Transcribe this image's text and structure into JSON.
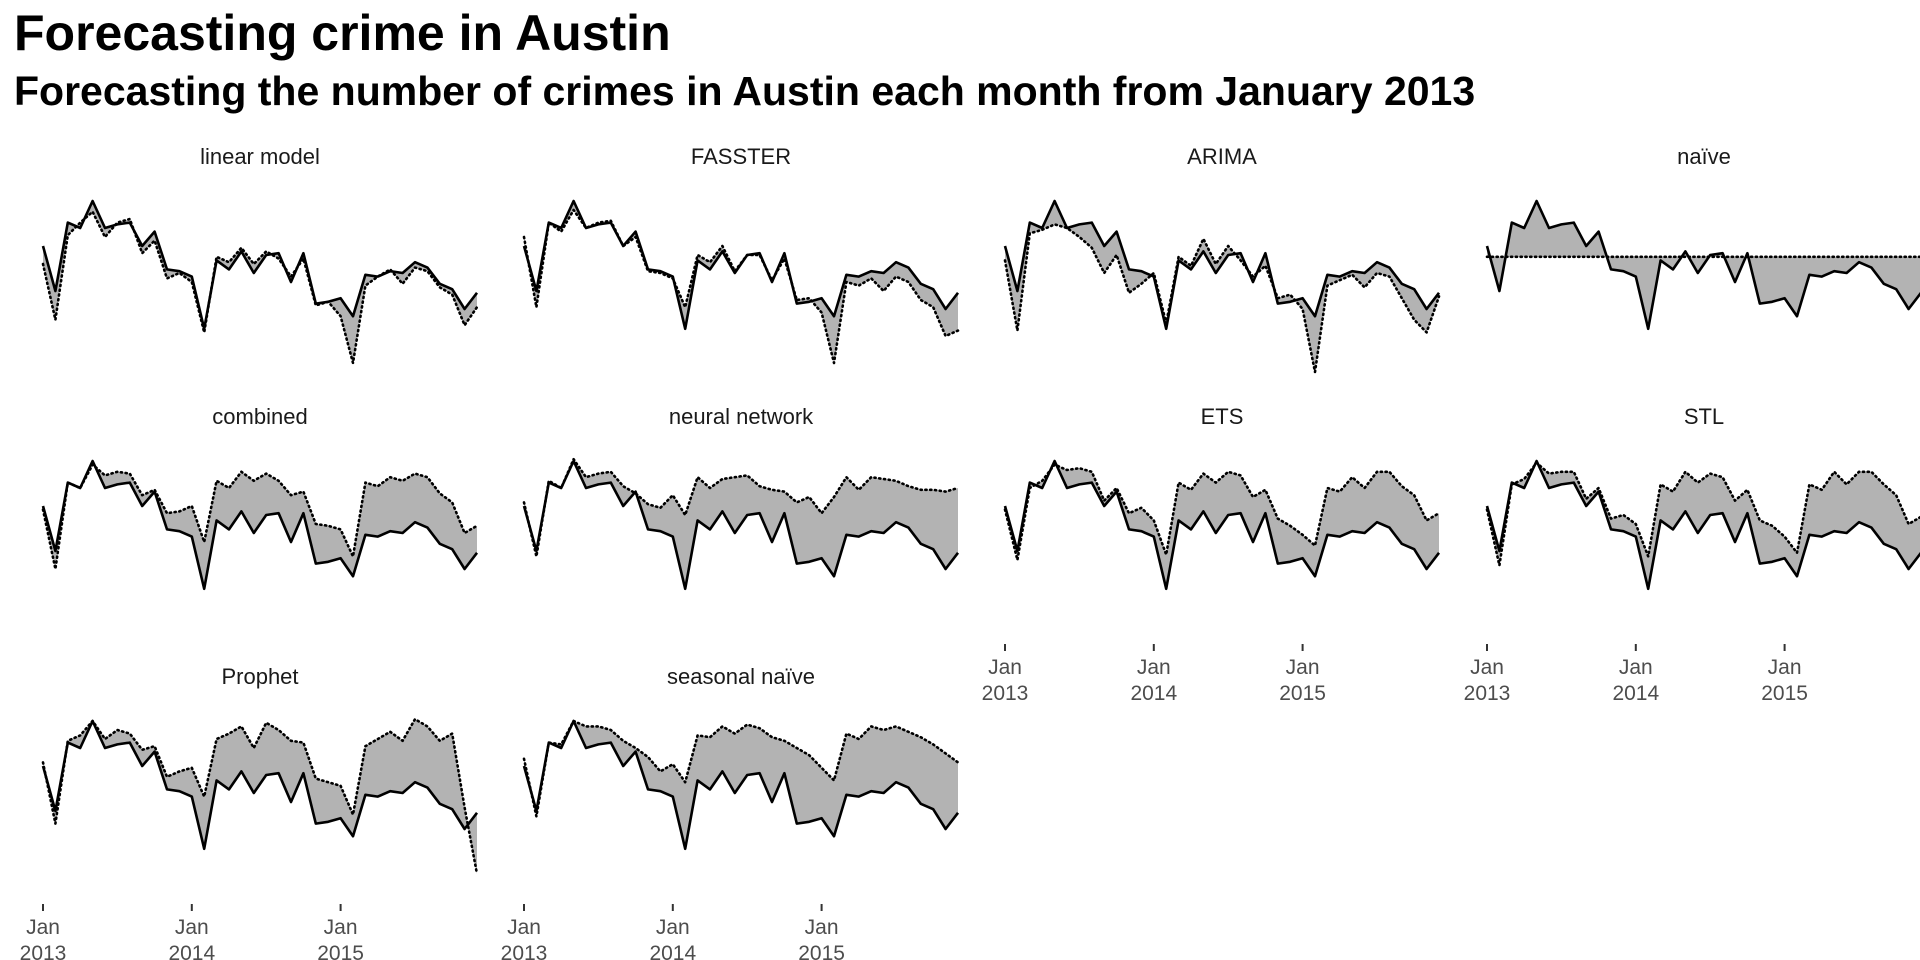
{
  "title": "Forecasting crime in Austin",
  "subtitle": "Forecasting the number of crimes in Austin each month from January 2013",
  "chart_data": {
    "type": "line",
    "layout": "facet-wrap, 4 columns, 3 rows",
    "x_start": "2013-01",
    "x_ticks": [
      {
        "month": "2013-01",
        "label": [
          "Jan",
          "2013"
        ]
      },
      {
        "month": "2014-01",
        "label": [
          "Jan",
          "2014"
        ]
      },
      {
        "month": "2015-01",
        "label": [
          "Jan",
          "2015"
        ]
      }
    ],
    "y_axis_visible": false,
    "grid": false,
    "legend": "none",
    "fill_color": "#b3b3b3",
    "actual_style": "solid black",
    "forecast_style": "dotted black",
    "actual": [
      0.7,
      0.45,
      0.83,
      0.8,
      0.95,
      0.8,
      0.82,
      0.83,
      0.7,
      0.78,
      0.57,
      0.56,
      0.53,
      0.24,
      0.62,
      0.57,
      0.67,
      0.55,
      0.65,
      0.66,
      0.5,
      0.66,
      0.38,
      0.39,
      0.41,
      0.31,
      0.54,
      0.53,
      0.56,
      0.55,
      0.61,
      0.58,
      0.49,
      0.46,
      0.35,
      0.44
    ],
    "panels": [
      {
        "name": "linear model",
        "forecast": [
          0.6,
          0.29,
          0.76,
          0.83,
          0.89,
          0.75,
          0.83,
          0.85,
          0.66,
          0.73,
          0.52,
          0.55,
          0.5,
          0.22,
          0.64,
          0.61,
          0.69,
          0.6,
          0.67,
          0.63,
          0.53,
          0.63,
          0.37,
          0.39,
          0.31,
          0.05,
          0.48,
          0.53,
          0.57,
          0.49,
          0.58,
          0.56,
          0.47,
          0.43,
          0.26,
          0.36
        ]
      },
      {
        "name": "FASSTER",
        "forecast": [
          0.75,
          0.36,
          0.83,
          0.78,
          0.9,
          0.8,
          0.83,
          0.84,
          0.7,
          0.75,
          0.56,
          0.55,
          0.52,
          0.36,
          0.65,
          0.61,
          0.7,
          0.56,
          0.65,
          0.65,
          0.51,
          0.63,
          0.4,
          0.41,
          0.33,
          0.05,
          0.5,
          0.48,
          0.52,
          0.45,
          0.53,
          0.5,
          0.4,
          0.36,
          0.2,
          0.23
        ]
      },
      {
        "name": "ARIMA",
        "forecast": [
          0.62,
          0.23,
          0.77,
          0.79,
          0.82,
          0.8,
          0.75,
          0.69,
          0.55,
          0.65,
          0.44,
          0.49,
          0.55,
          0.27,
          0.64,
          0.59,
          0.74,
          0.6,
          0.7,
          0.62,
          0.53,
          0.59,
          0.41,
          0.43,
          0.35,
          0.0,
          0.48,
          0.51,
          0.54,
          0.47,
          0.55,
          0.53,
          0.41,
          0.29,
          0.22,
          0.42
        ]
      },
      {
        "name": "naïve",
        "forecast": [
          0.64,
          0.64,
          0.64,
          0.64,
          0.64,
          0.64,
          0.64,
          0.64,
          0.64,
          0.64,
          0.64,
          0.64,
          0.64,
          0.64,
          0.64,
          0.64,
          0.64,
          0.64,
          0.64,
          0.64,
          0.64,
          0.64,
          0.64,
          0.64,
          0.64,
          0.64,
          0.64,
          0.64,
          0.64,
          0.64,
          0.64,
          0.64,
          0.64,
          0.64,
          0.64,
          0.64
        ]
      },
      {
        "name": "combined",
        "forecast": [
          0.68,
          0.35,
          0.83,
          0.8,
          0.93,
          0.87,
          0.89,
          0.88,
          0.76,
          0.79,
          0.66,
          0.67,
          0.7,
          0.5,
          0.84,
          0.8,
          0.89,
          0.84,
          0.88,
          0.84,
          0.76,
          0.78,
          0.6,
          0.59,
          0.57,
          0.42,
          0.83,
          0.81,
          0.86,
          0.84,
          0.88,
          0.86,
          0.77,
          0.72,
          0.55,
          0.59
        ]
      },
      {
        "name": "neural network",
        "forecast": [
          0.72,
          0.42,
          0.84,
          0.8,
          0.96,
          0.86,
          0.88,
          0.89,
          0.81,
          0.77,
          0.71,
          0.69,
          0.76,
          0.65,
          0.86,
          0.8,
          0.85,
          0.86,
          0.87,
          0.81,
          0.79,
          0.78,
          0.72,
          0.75,
          0.66,
          0.75,
          0.86,
          0.79,
          0.86,
          0.85,
          0.84,
          0.81,
          0.79,
          0.79,
          0.78,
          0.8
        ]
      },
      {
        "name": "ETS",
        "forecast": [
          0.68,
          0.4,
          0.8,
          0.84,
          0.93,
          0.9,
          0.91,
          0.89,
          0.73,
          0.8,
          0.66,
          0.69,
          0.62,
          0.43,
          0.83,
          0.79,
          0.88,
          0.83,
          0.89,
          0.87,
          0.75,
          0.79,
          0.63,
          0.59,
          0.54,
          0.48,
          0.8,
          0.78,
          0.86,
          0.8,
          0.89,
          0.89,
          0.81,
          0.76,
          0.62,
          0.66
        ]
      },
      {
        "name": "STL",
        "forecast": [
          0.68,
          0.37,
          0.82,
          0.85,
          0.94,
          0.88,
          0.89,
          0.89,
          0.74,
          0.8,
          0.63,
          0.65,
          0.6,
          0.42,
          0.82,
          0.78,
          0.89,
          0.83,
          0.88,
          0.86,
          0.73,
          0.79,
          0.62,
          0.59,
          0.53,
          0.44,
          0.82,
          0.79,
          0.89,
          0.82,
          0.89,
          0.89,
          0.82,
          0.76,
          0.6,
          0.64
        ]
      },
      {
        "name": "Prophet",
        "forecast": [
          0.72,
          0.38,
          0.84,
          0.87,
          0.95,
          0.85,
          0.9,
          0.88,
          0.79,
          0.81,
          0.64,
          0.67,
          0.69,
          0.53,
          0.85,
          0.88,
          0.92,
          0.8,
          0.94,
          0.9,
          0.84,
          0.83,
          0.63,
          0.61,
          0.59,
          0.43,
          0.81,
          0.85,
          0.89,
          0.84,
          0.96,
          0.92,
          0.84,
          0.88,
          0.47,
          0.1
        ]
      },
      {
        "name": "seasonal naïve",
        "forecast": [
          0.74,
          0.42,
          0.83,
          0.82,
          0.95,
          0.92,
          0.92,
          0.9,
          0.84,
          0.8,
          0.75,
          0.67,
          0.71,
          0.61,
          0.87,
          0.86,
          0.92,
          0.88,
          0.93,
          0.91,
          0.86,
          0.84,
          0.8,
          0.76,
          0.69,
          0.62,
          0.88,
          0.85,
          0.92,
          0.9,
          0.92,
          0.89,
          0.86,
          0.82,
          0.77,
          0.72
        ]
      }
    ]
  }
}
